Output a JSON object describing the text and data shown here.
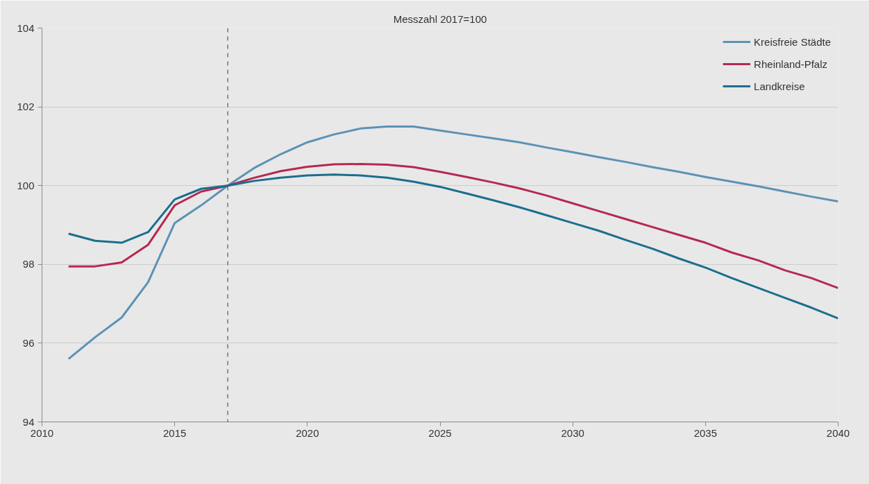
{
  "chart_data": {
    "type": "line",
    "title": "Messzahl 2017=100",
    "x": [
      2011,
      2012,
      2013,
      2014,
      2015,
      2016,
      2017,
      2018,
      2019,
      2020,
      2021,
      2022,
      2023,
      2024,
      2025,
      2026,
      2027,
      2028,
      2029,
      2030,
      2031,
      2032,
      2033,
      2034,
      2035,
      2036,
      2037,
      2038,
      2039,
      2040
    ],
    "series": [
      {
        "name": "Kreisfreie Städte",
        "color": "#5b92b5",
        "values": [
          95.6,
          96.15,
          96.65,
          97.55,
          99.05,
          99.5,
          100,
          100.45,
          100.8,
          101.1,
          101.3,
          101.45,
          101.5,
          101.5,
          101.4,
          101.3,
          101.2,
          101.1,
          100.97,
          100.85,
          100.72,
          100.6,
          100.47,
          100.35,
          100.22,
          100.1,
          99.98,
          99.85,
          99.72,
          99.6
        ]
      },
      {
        "name": "Rheinland-Pfalz",
        "color": "#b5284f",
        "values": [
          97.95,
          97.95,
          98.05,
          98.5,
          99.5,
          99.85,
          100,
          100.2,
          100.37,
          100.48,
          100.54,
          100.55,
          100.53,
          100.47,
          100.35,
          100.22,
          100.08,
          99.93,
          99.75,
          99.55,
          99.35,
          99.15,
          98.95,
          98.75,
          98.55,
          98.3,
          98.1,
          97.85,
          97.65,
          97.4
        ]
      },
      {
        "name": "Landkreise",
        "color": "#1a6e8e",
        "values": [
          98.78,
          98.6,
          98.55,
          98.82,
          99.65,
          99.92,
          100,
          100.12,
          100.2,
          100.26,
          100.28,
          100.26,
          100.2,
          100.1,
          99.97,
          99.8,
          99.63,
          99.45,
          99.25,
          99.05,
          98.85,
          98.62,
          98.4,
          98.15,
          97.92,
          97.65,
          97.4,
          97.15,
          96.9,
          96.63
        ]
      }
    ],
    "xlim": [
      2010,
      2040
    ],
    "xticks": [
      2010,
      2015,
      2020,
      2025,
      2030,
      2035,
      2040
    ],
    "ylim": [
      94,
      104
    ],
    "yticks": [
      94,
      96,
      98,
      100,
      102,
      104
    ],
    "ref_lines": [
      {
        "axis": "x",
        "value": 2017,
        "color": "#555555",
        "line_style": "dashed"
      }
    ],
    "grid": "y",
    "legend": "top right",
    "line_style": "solid",
    "marker": "none"
  }
}
